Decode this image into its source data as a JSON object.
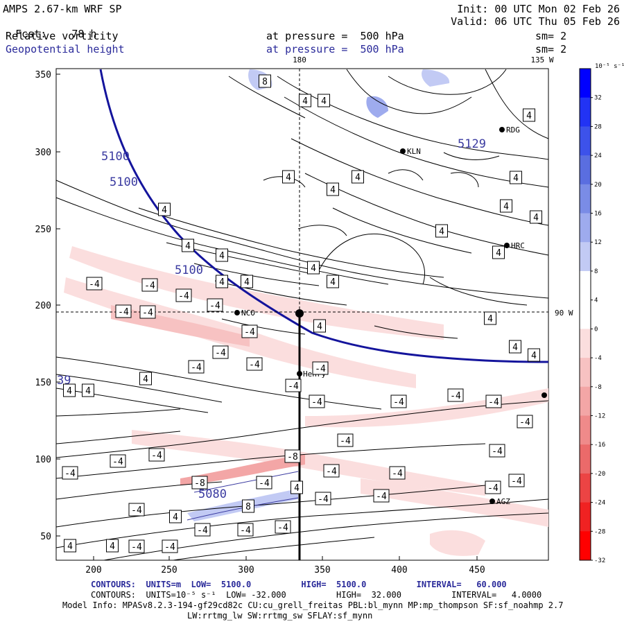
{
  "header": {
    "model": "AMPS 2.67-km WRF SP",
    "forecast_label": "Fcst:",
    "forecast_hours": "78 h",
    "init": "Init: 00 UTC Mon 02 Feb 26",
    "valid": "Valid: 06 UTC Thu 05 Feb 26",
    "field1_name": "Relative vorticity",
    "field1_level": "at pressure =  500 hPa",
    "field1_smooth": "sm= 2",
    "field2_name": "Geopotential height",
    "field2_level": "at pressure =  500 hPa",
    "field2_smooth": "sm= 2"
  },
  "map": {
    "x_ticks": [
      "200",
      "250",
      "300",
      "350",
      "400",
      "450"
    ],
    "y_ticks": [
      "350",
      "300",
      "250",
      "200",
      "150",
      "100",
      "50"
    ],
    "meridian_labels": {
      "m180": "180",
      "m135": "135 W",
      "m90": "90 W"
    },
    "stations": [
      {
        "name": "NCO"
      },
      {
        "name": "KLN"
      },
      {
        "name": "HRC"
      },
      {
        "name": "RDG"
      },
      {
        "name": "Henry"
      },
      {
        "name": "AGZ"
      }
    ],
    "height_labels": [
      "5100",
      "5100",
      "5100",
      "5129",
      "5080",
      "39"
    ],
    "vorticity_labels": [
      "4",
      "-4",
      "8",
      "-8"
    ]
  },
  "colorbar": {
    "units": "10⁻⁵ s⁻¹",
    "ticks": [
      "32",
      "28",
      "24",
      "20",
      "16",
      "12",
      "8",
      "4",
      "0",
      "-4",
      "-8",
      "-12",
      "-16",
      "-20",
      "-24",
      "-28",
      "-32"
    ],
    "colors": [
      "#0000ff",
      "#2233f4",
      "#3d52ea",
      "#5a6ee0",
      "#7a8ce6",
      "#9eabee",
      "#c2caf4",
      "#ffffff",
      "#ffffff",
      "#fbdede",
      "#f7c2c2",
      "#f3a6a6",
      "#ef8a8a",
      "#eb6a6a",
      "#ec4444",
      "#f02222",
      "#ff0000"
    ]
  },
  "footer": {
    "line1_prefix": "CONTOURS:  UNITS=m  LOW=  5100.0          HIGH=  5100.0          INTERVAL=   60.000",
    "line2": "CONTOURS:  UNITS=10⁻⁵ s⁻¹  LOW= -32.000          HIGH=  32.000          INTERVAL=   4.0000",
    "line3": "Model Info: MPASv8.2.3-194-gf29cd82c CU:cu_grell_freitas PBL:bl_mynn MP:mp_thompson SF:sf_noahmp 2.7",
    "line4": "LW:rrtmg_lw SW:rrtmg_sw SFLAY:sf_mynn"
  }
}
